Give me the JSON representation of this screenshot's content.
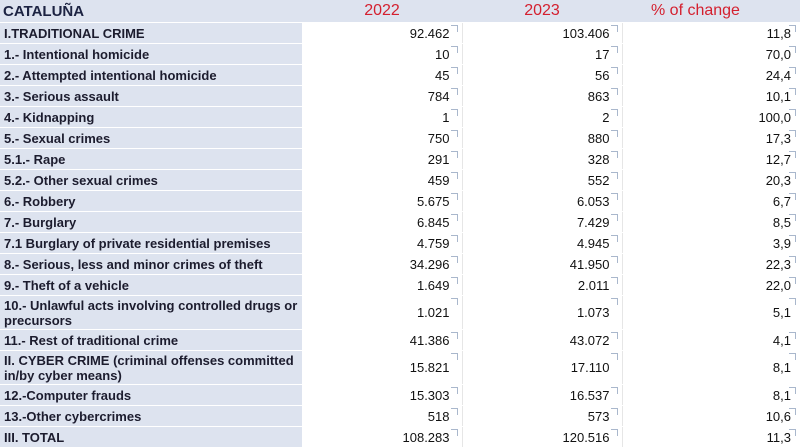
{
  "header": {
    "region": "CATALUÑA",
    "col_2022": "2022",
    "col_2023": "2023",
    "col_change": "% of change"
  },
  "rows": [
    {
      "label": "I.TRADITIONAL CRIME",
      "y2022": "92.462",
      "y2023": "103.406",
      "change": "11,8"
    },
    {
      "label": "1.- Intentional homicide",
      "y2022": "10",
      "y2023": "17",
      "change": "70,0"
    },
    {
      "label": "2.- Attempted intentional homicide",
      "y2022": "45",
      "y2023": "56",
      "change": "24,4"
    },
    {
      "label": "3.- Serious assault",
      "y2022": "784",
      "y2023": "863",
      "change": "10,1"
    },
    {
      "label": "4.- Kidnapping",
      "y2022": "1",
      "y2023": "2",
      "change": "100,0"
    },
    {
      "label": "5.- Sexual crimes",
      "y2022": "750",
      "y2023": "880",
      "change": "17,3"
    },
    {
      "label": "5.1.- Rape",
      "y2022": "291",
      "y2023": "328",
      "change": "12,7"
    },
    {
      "label": "5.2.- Other sexual crimes",
      "y2022": "459",
      "y2023": "552",
      "change": "20,3"
    },
    {
      "label": "6.- Robbery",
      "y2022": "5.675",
      "y2023": "6.053",
      "change": "6,7"
    },
    {
      "label": "7.- Burglary",
      "y2022": "6.845",
      "y2023": "7.429",
      "change": "8,5"
    },
    {
      "label": "7.1 Burglary of private residential premises",
      "y2022": "4.759",
      "y2023": "4.945",
      "change": "3,9"
    },
    {
      "label": "8.- Serious, less and minor crimes of theft",
      "y2022": "34.296",
      "y2023": "41.950",
      "change": "22,3"
    },
    {
      "label": "9.- Theft of a vehicle",
      "y2022": "1.649",
      "y2023": "2.011",
      "change": "22,0"
    },
    {
      "label": "10.- Unlawful acts involving controlled drugs or precursors",
      "y2022": "1.021",
      "y2023": "1.073",
      "change": "5,1"
    },
    {
      "label": "11.- Rest of traditional crime",
      "y2022": "41.386",
      "y2023": "43.072",
      "change": "4,1"
    },
    {
      "label": "II. CYBER CRIME (criminal offenses committed in/by cyber means)",
      "y2022": "15.821",
      "y2023": "17.110",
      "change": "8,1"
    },
    {
      "label": "12.-Computer frauds",
      "y2022": "15.303",
      "y2023": "16.537",
      "change": "8,1"
    },
    {
      "label": "13.-Other cybercrimes",
      "y2022": "518",
      "y2023": "573",
      "change": "10,6"
    },
    {
      "label": "III. TOTAL",
      "y2022": "108.283",
      "y2023": "120.516",
      "change": "11,3"
    }
  ]
}
